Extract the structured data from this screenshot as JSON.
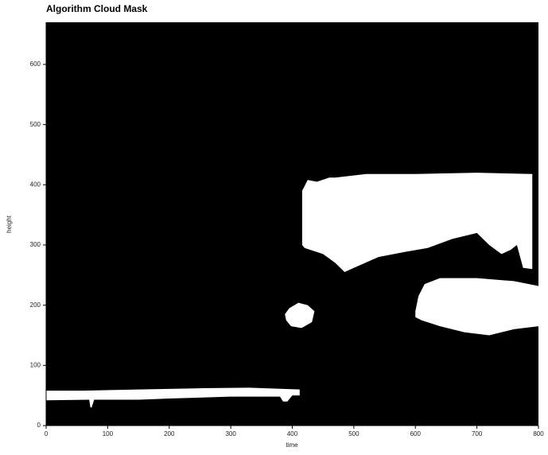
{
  "chart_data": {
    "type": "mask",
    "title": "Algorithm Cloud Mask",
    "x_label": "time",
    "y_label": "height",
    "background": "#000000",
    "color": "#ffffff",
    "xlim": [
      0,
      800
    ],
    "ylim": [
      0,
      670
    ],
    "xticks": [
      0,
      100,
      200,
      300,
      400,
      500,
      600,
      700,
      800
    ],
    "yticks": [
      0,
      100,
      200,
      300,
      400,
      500,
      600
    ],
    "regions": [
      {
        "x": [
          0,
          60,
          150,
          250,
          330,
          412,
          412,
          400,
          392,
          385,
          380,
          300,
          200,
          150,
          78,
          74,
          72,
          70,
          0
        ],
        "y": [
          58,
          58,
          60,
          62,
          63,
          60,
          50,
          50,
          40,
          40,
          48,
          48,
          45,
          43,
          43,
          30,
          30,
          43,
          42
        ]
      },
      {
        "x": [
          388,
          395,
          410,
          425,
          436,
          432,
          415,
          398,
          390
        ],
        "y": [
          185,
          195,
          204,
          200,
          190,
          172,
          162,
          165,
          175
        ]
      },
      {
        "x": [
          416,
          425,
          440,
          460,
          470,
          520,
          600,
          700,
          790,
          790,
          775,
          765,
          755,
          740,
          720,
          700,
          660,
          620,
          580,
          540,
          500,
          485,
          470,
          450,
          420,
          416
        ],
        "y": [
          390,
          408,
          405,
          412,
          412,
          418,
          418,
          420,
          418,
          260,
          262,
          300,
          292,
          285,
          300,
          320,
          310,
          295,
          288,
          280,
          262,
          255,
          270,
          285,
          295,
          300
        ]
      },
      {
        "x": [
          600,
          605,
          615,
          640,
          700,
          760,
          800,
          800,
          760,
          720,
          680,
          640,
          610,
          600
        ],
        "y": [
          190,
          215,
          235,
          245,
          245,
          240,
          232,
          165,
          160,
          150,
          155,
          165,
          175,
          180
        ]
      }
    ]
  }
}
